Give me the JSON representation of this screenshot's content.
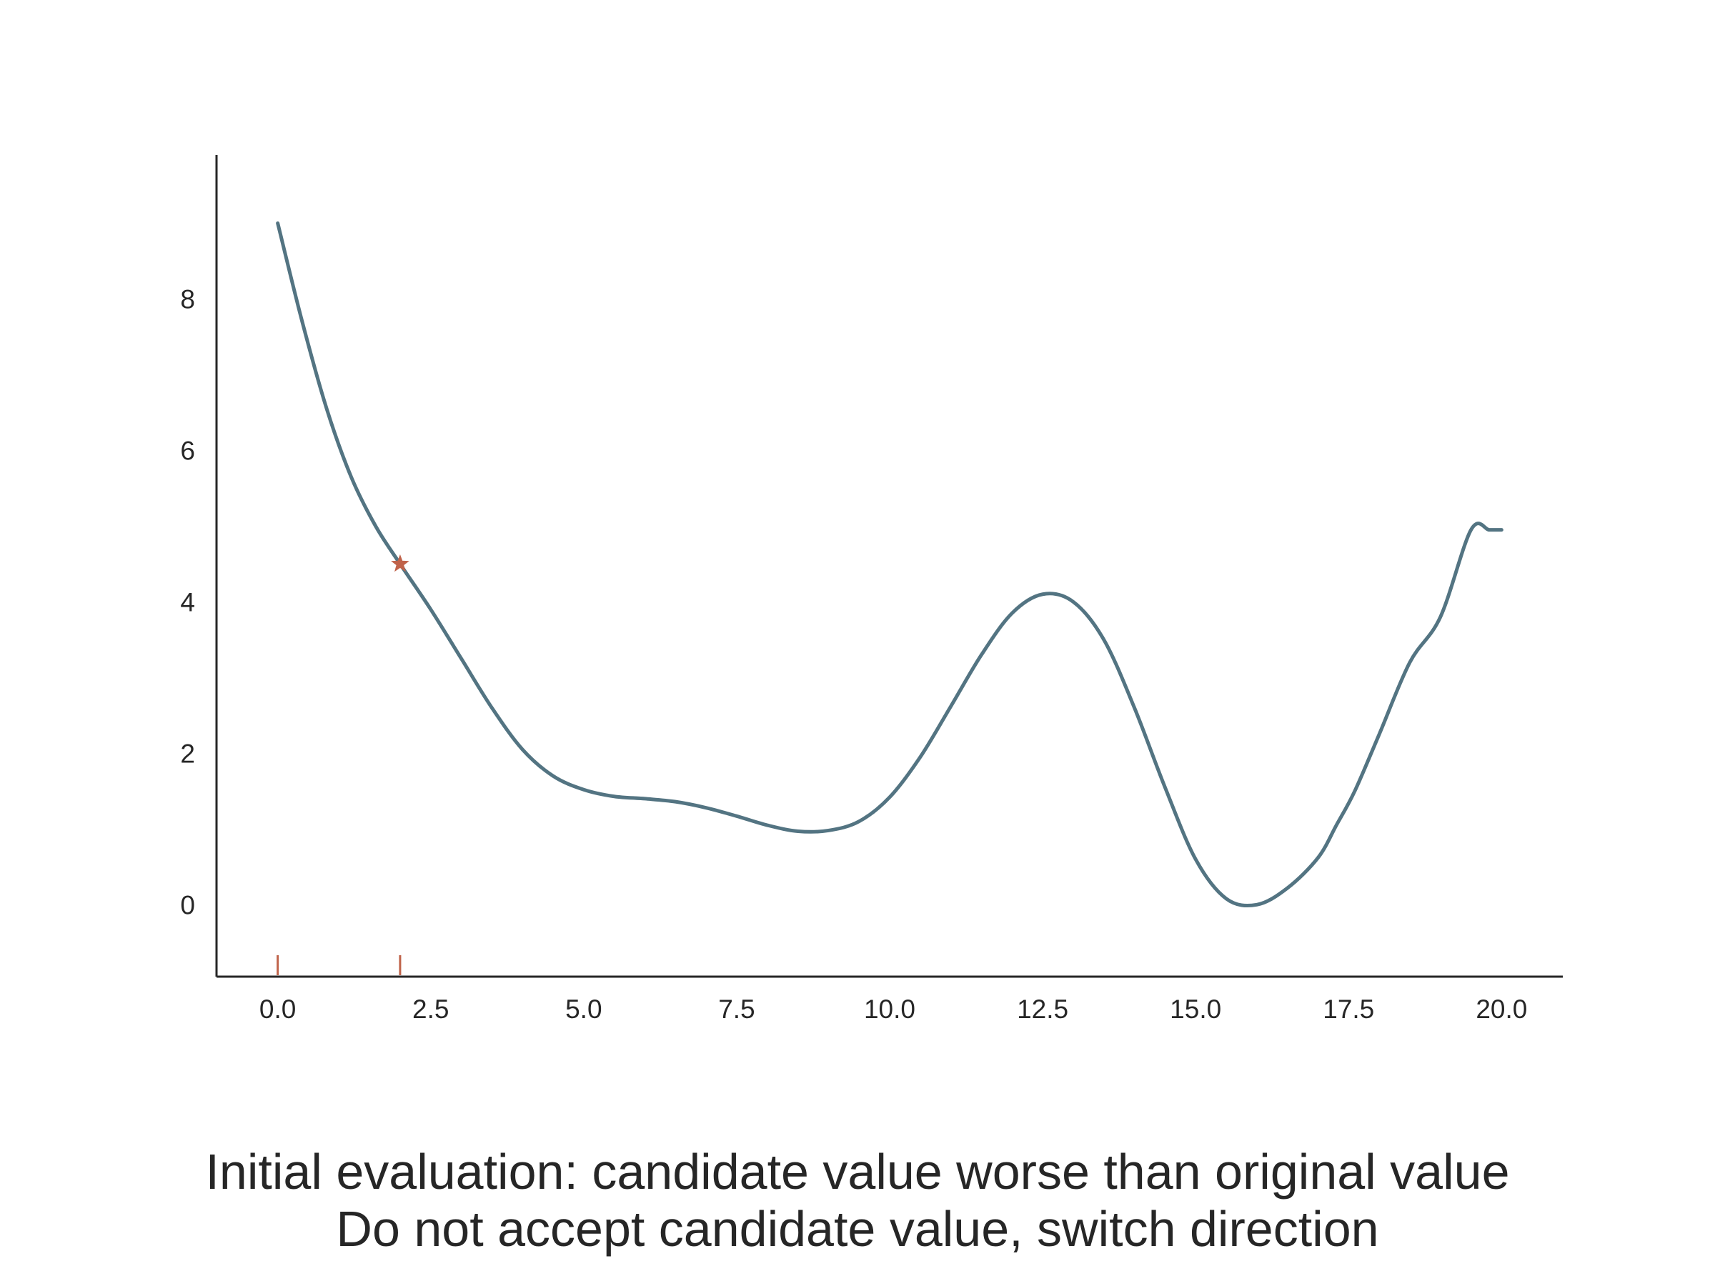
{
  "chart_data": {
    "type": "line",
    "title": "",
    "xlabel": "",
    "ylabel": "",
    "xlim": [
      -1.0,
      21.0
    ],
    "ylim": [
      -0.95,
      9.9
    ],
    "grid": false,
    "xticks": [
      "0.0",
      "2.5",
      "5.0",
      "7.5",
      "10.0",
      "12.5",
      "15.0",
      "17.5",
      "20.0"
    ],
    "yticks": [
      "0",
      "2",
      "4",
      "6",
      "8"
    ],
    "line_color": "#537482",
    "marker_color": "#c0634a",
    "series": [
      {
        "x": [
          0,
          0.4,
          0.8,
          1.2,
          1.6,
          2.0,
          2.5,
          3.0,
          3.5,
          4.0,
          4.5,
          5.0,
          5.5,
          6.0,
          6.5,
          7.0,
          7.5,
          8.0,
          8.5,
          9.0,
          9.5,
          10.0,
          10.5,
          11.0,
          11.5,
          12.0,
          12.5,
          13.0,
          13.5,
          14.0,
          14.5,
          15.0,
          15.5,
          16.0,
          16.5,
          17.0,
          17.3,
          17.6,
          18.0,
          18.5,
          19.0,
          19.5,
          19.8,
          20.0
        ],
        "y": [
          9.0,
          7.7,
          6.55,
          5.65,
          5.0,
          4.5,
          3.9,
          3.25,
          2.6,
          2.05,
          1.7,
          1.52,
          1.43,
          1.4,
          1.36,
          1.28,
          1.17,
          1.05,
          0.97,
          0.98,
          1.1,
          1.42,
          1.95,
          2.62,
          3.3,
          3.85,
          4.1,
          4.0,
          3.5,
          2.6,
          1.55,
          0.6,
          0.08,
          0.0,
          0.22,
          0.62,
          1.05,
          1.5,
          2.25,
          3.2,
          3.8,
          4.95,
          4.95,
          4.95
        ]
      }
    ],
    "points": [
      {
        "x": 2.0,
        "y": 4.5,
        "marker": "star"
      }
    ],
    "rug": [
      0.0,
      2.0
    ],
    "caption": [
      "Initial evaluation: candidate value worse than original value",
      "Do not accept candidate value, switch direction"
    ]
  }
}
